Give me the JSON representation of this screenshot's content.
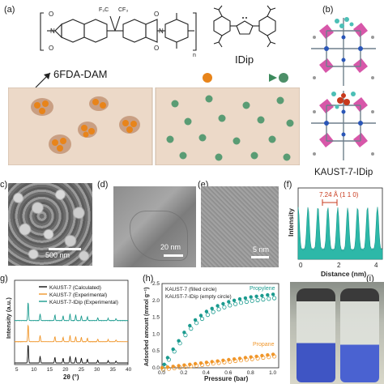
{
  "panels": {
    "a": "(a)",
    "b": "(b)",
    "c": "c)",
    "d": "(d)",
    "e": "(e)",
    "f": "(f)",
    "g": "g)",
    "h": "(h)",
    "i": "(i)"
  },
  "panel_a": {
    "polymer_name": "6FDA-DAM",
    "carbene_name": "IDip",
    "subscript_n": "n",
    "cf3_left": "F₃C",
    "cf3_right": "CF₃",
    "n_label": "N",
    "o_label": "O"
  },
  "panel_b": {
    "mof_name": "KAUST-7-IDip"
  },
  "panel_c": {
    "scale": "500 nm"
  },
  "panel_d": {
    "scale": "20 nm"
  },
  "panel_e": {
    "scale": "5 nm"
  },
  "panel_f": {
    "annotation": "7.24 Å  (1 1 0)",
    "xlabel": "Distance (nm)",
    "ylabel": "Intensity",
    "xticks": [
      "0",
      "2",
      "4"
    ]
  },
  "panel_g": {
    "legend": [
      "KAUST-7 (Calculated)",
      "KAUST-7 (Experimental)",
      "KAUST-7-IDip (Experimental)"
    ],
    "xlabel": "2θ (°)",
    "ylabel": "Intensity (a.u.)",
    "xticks": [
      "5",
      "10",
      "15",
      "20",
      "25",
      "30",
      "35",
      "40"
    ],
    "colors": [
      "#111111",
      "#f0962a",
      "#1b9b8f"
    ]
  },
  "panel_h": {
    "legend": [
      "KAUST-7 (filled circle)",
      "KAUST-7-IDip (empty circle)"
    ],
    "xlabel": "Pressure (bar)",
    "ylabel": "Adsorbed amount (mmol g⁻¹)",
    "xticks": [
      "0.0",
      "0.2",
      "0.4",
      "0.6",
      "0.8",
      "1.0"
    ],
    "yticks": [
      "0.0",
      "0.5",
      "1.0",
      "1.5",
      "2.0",
      "2.5"
    ],
    "series_propylene": "Propylene",
    "series_propane": "Propane",
    "colors": {
      "propylene": "#1b9b8f",
      "propane": "#f0962a"
    }
  },
  "chart_data": [
    {
      "type": "line",
      "panel": "h",
      "xlabel": "Pressure (bar)",
      "ylabel": "Adsorbed amount (mmol g⁻¹)",
      "xlim": [
        0,
        1.05
      ],
      "ylim": [
        0,
        2.5
      ],
      "series": [
        {
          "name": "Propylene",
          "x": [
            0.0,
            0.02,
            0.05,
            0.1,
            0.15,
            0.2,
            0.25,
            0.3,
            0.35,
            0.4,
            0.45,
            0.5,
            0.55,
            0.6,
            0.65,
            0.7,
            0.75,
            0.8,
            0.85,
            0.9,
            0.95,
            1.0
          ],
          "y": [
            0.0,
            0.1,
            0.3,
            0.55,
            0.8,
            1.05,
            1.25,
            1.42,
            1.55,
            1.67,
            1.76,
            1.84,
            1.9,
            1.96,
            2.0,
            2.04,
            2.07,
            2.1,
            2.12,
            2.14,
            2.16,
            2.18
          ]
        },
        {
          "name": "Propane",
          "x": [
            0.0,
            0.05,
            0.1,
            0.15,
            0.2,
            0.25,
            0.3,
            0.35,
            0.4,
            0.45,
            0.5,
            0.55,
            0.6,
            0.65,
            0.7,
            0.75,
            0.8,
            0.85,
            0.9,
            0.95,
            1.0
          ],
          "y": [
            0.0,
            0.02,
            0.04,
            0.06,
            0.08,
            0.1,
            0.12,
            0.14,
            0.16,
            0.18,
            0.2,
            0.22,
            0.24,
            0.26,
            0.28,
            0.3,
            0.32,
            0.34,
            0.36,
            0.38,
            0.4
          ]
        }
      ]
    }
  ]
}
